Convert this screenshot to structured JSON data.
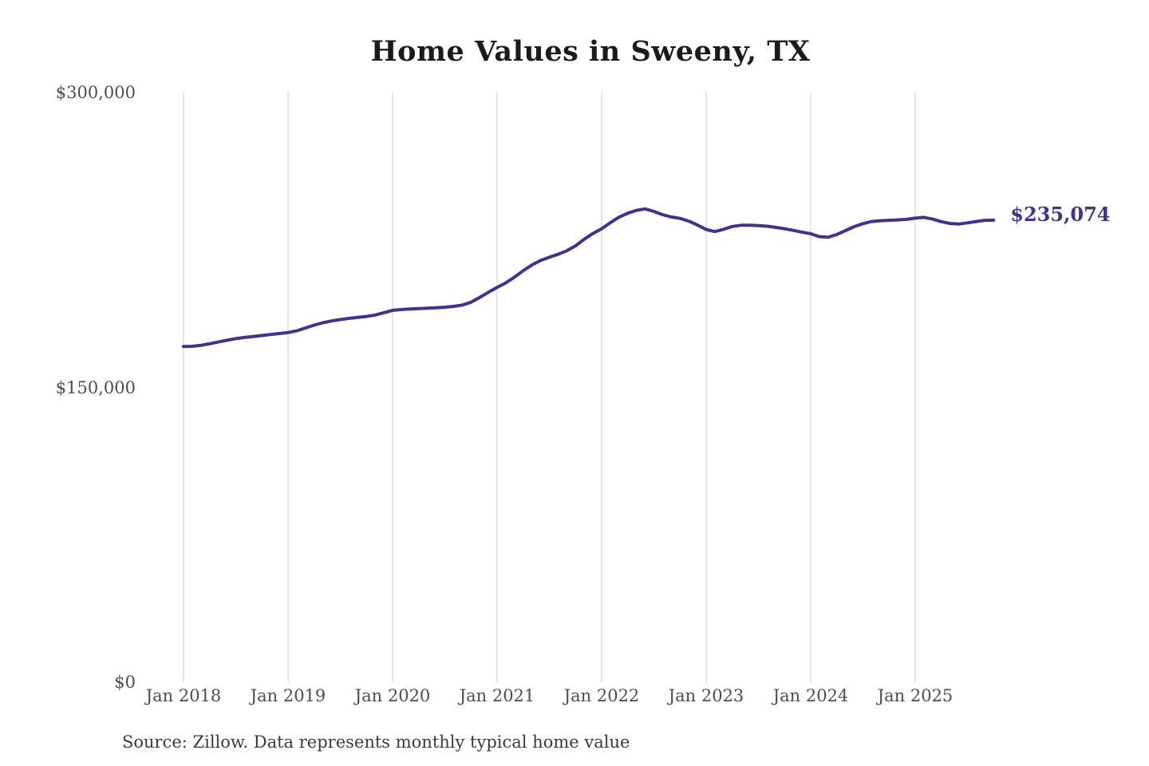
{
  "chart_data": {
    "type": "line",
    "title": "Home Values in Sweeny, TX",
    "source": "Source: Zillow. Data represents monthly typical home value",
    "end_label": "$235,074",
    "end_value": 235074,
    "grid": "vertical-only",
    "gridline_color": "#cccccc",
    "ylim": [
      0,
      300000
    ],
    "y_ticks": [
      {
        "label": "$0",
        "value": 0
      },
      {
        "label": "$150,000",
        "value": 150000
      },
      {
        "label": "$300,000",
        "value": 300000
      }
    ],
    "x_tick_labels": [
      "Jan 2018",
      "Jan 2019",
      "Jan 2020",
      "Jan 2021",
      "Jan 2022",
      "Jan 2023",
      "Jan 2024",
      "Jan 2025"
    ],
    "series": [
      {
        "name": "Monthly typical home value",
        "color": "#3a3590",
        "start_month": "2018-01",
        "end_month": "2025-10",
        "values": [
          170800,
          170900,
          171400,
          172200,
          173100,
          174000,
          174800,
          175400,
          175900,
          176400,
          176900,
          177400,
          177900,
          178800,
          180200,
          181700,
          182900,
          183800,
          184500,
          185100,
          185600,
          186100,
          186800,
          188000,
          189200,
          189600,
          189900,
          190100,
          190300,
          190500,
          190800,
          191200,
          191900,
          193300,
          195800,
          198400,
          200900,
          203200,
          206100,
          209400,
          212300,
          214600,
          216200,
          217700,
          219500,
          222000,
          225400,
          228300,
          230700,
          233800,
          236600,
          238600,
          240100,
          240800,
          239500,
          237900,
          236700,
          236000,
          234600,
          232600,
          230300,
          229300,
          230400,
          231900,
          232500,
          232500,
          232300,
          232000,
          231400,
          230700,
          229900,
          229000,
          228200,
          226700,
          226400,
          227800,
          229800,
          231800,
          233300,
          234400,
          234800,
          235000,
          235200,
          235500,
          236100,
          236500,
          235600,
          234300,
          233400,
          233100,
          233700,
          234400,
          235000,
          235074
        ]
      }
    ]
  }
}
